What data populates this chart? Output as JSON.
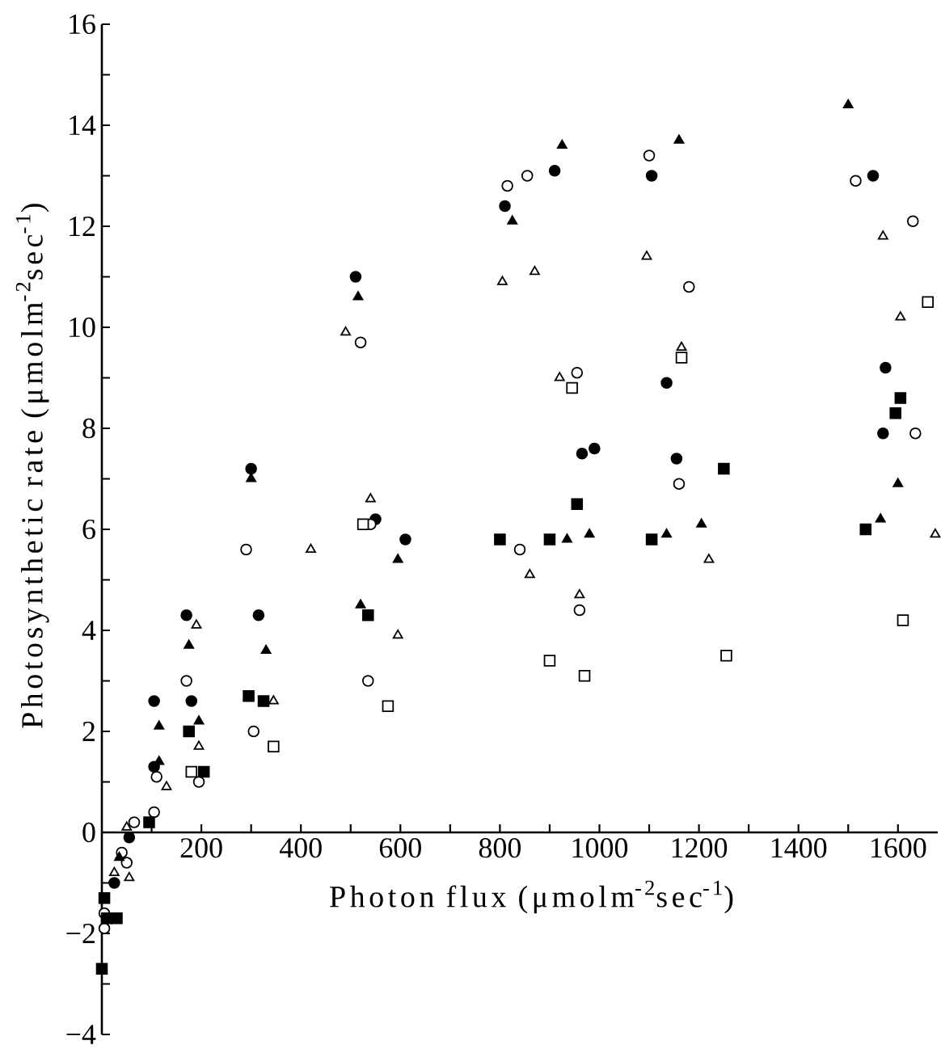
{
  "chart_data": {
    "type": "scatter",
    "xlabel": "Photon flux  (μmolm$^{-2}$sec$^{-1}$)",
    "ylabel": "Photosynthetic rate  (μmolm$^{-2}$sec$^{-1}$)",
    "xlim": [
      0,
      1680
    ],
    "ylim": [
      -4,
      16
    ],
    "xticks": [
      {
        "value": 100,
        "label": null
      },
      200,
      {
        "value": 300,
        "label": null
      },
      400,
      {
        "value": 500,
        "label": null
      },
      600,
      {
        "value": 700,
        "label": null
      },
      800,
      {
        "value": 900,
        "label": null
      },
      1000,
      {
        "value": 1100,
        "label": null
      },
      1200,
      {
        "value": 1300,
        "label": null
      },
      1400,
      {
        "value": 1500,
        "label": null
      },
      1600
    ],
    "yticks": [
      {
        "value": -4,
        "label": "−4"
      },
      {
        "value": -3,
        "label": null
      },
      {
        "value": -2,
        "label": "−2"
      },
      {
        "value": -1,
        "label": null
      },
      0,
      {
        "value": 1,
        "label": null
      },
      2,
      {
        "value": 3,
        "label": null
      },
      4,
      {
        "value": 5,
        "label": null
      },
      6,
      {
        "value": 7,
        "label": null
      },
      8,
      {
        "value": 9,
        "label": null
      },
      10,
      {
        "value": 11,
        "label": null
      },
      12,
      {
        "value": 13,
        "label": null
      },
      14,
      {
        "value": 15,
        "label": null
      },
      16
    ],
    "series": [
      {
        "marker": "circle",
        "color": "#000000",
        "x": [
          510,
          300,
          550,
          610,
          170,
          315,
          105,
          180,
          105,
          55,
          25,
          910,
          810,
          1105,
          1550,
          1135,
          965,
          990,
          1155,
          1575,
          1570
        ],
        "values": [
          11.0,
          7.2,
          6.2,
          5.8,
          4.3,
          4.3,
          2.6,
          2.6,
          1.3,
          -0.1,
          -1.0,
          13.1,
          12.4,
          13.0,
          13.0,
          8.9,
          7.5,
          7.6,
          7.4,
          9.2,
          7.9
        ]
      },
      {
        "marker": "circle",
        "color": "#ffffff",
        "x": [
          520,
          815,
          855,
          1100,
          1180,
          955,
          1160,
          1515,
          1630,
          1635,
          840,
          960,
          540,
          290,
          535,
          305,
          170,
          195,
          110,
          105,
          65,
          40,
          50,
          5,
          5
        ],
        "values": [
          9.7,
          12.8,
          13.0,
          13.4,
          10.8,
          9.1,
          6.9,
          12.9,
          12.1,
          7.9,
          5.6,
          4.4,
          6.1,
          5.6,
          3.0,
          2.0,
          3.0,
          1.0,
          1.1,
          0.4,
          0.2,
          -0.4,
          -0.6,
          -1.6,
          -1.9
        ]
      },
      {
        "marker": "triangle",
        "color": "#000000",
        "x": [
          515,
          300,
          925,
          825,
          1160,
          1500,
          1600,
          935,
          980,
          1135,
          1205,
          1565,
          595,
          520,
          330,
          175,
          115,
          195,
          115,
          35
        ],
        "values": [
          10.6,
          7.0,
          13.6,
          12.1,
          13.7,
          14.4,
          6.9,
          5.8,
          5.9,
          5.9,
          6.1,
          6.2,
          5.4,
          4.5,
          3.6,
          3.7,
          2.1,
          2.2,
          1.4,
          -0.5
        ]
      },
      {
        "marker": "triangle",
        "color": "#ffffff",
        "x": [
          490,
          805,
          870,
          1095,
          1165,
          920,
          1570,
          1605,
          860,
          960,
          1220,
          1675,
          540,
          420,
          595,
          345,
          190,
          195,
          130,
          50,
          25,
          55
        ],
        "values": [
          9.9,
          10.9,
          11.1,
          11.4,
          9.6,
          9.0,
          11.8,
          10.2,
          5.1,
          4.7,
          5.4,
          5.9,
          6.6,
          5.6,
          3.9,
          2.6,
          4.1,
          1.7,
          0.9,
          0.1,
          -0.8,
          -0.9
        ]
      },
      {
        "marker": "square",
        "color": "#000000",
        "x": [
          1250,
          955,
          1605,
          1595,
          800,
          900,
          1105,
          1535,
          535,
          295,
          325,
          175,
          205,
          95,
          5,
          10,
          30,
          0
        ],
        "values": [
          7.2,
          6.5,
          8.6,
          8.3,
          5.8,
          5.8,
          5.8,
          6.0,
          4.3,
          2.7,
          2.6,
          2.0,
          1.2,
          0.2,
          -1.3,
          -1.7,
          -1.7,
          -2.7
        ]
      },
      {
        "marker": "square",
        "color": "#ffffff",
        "x": [
          1165,
          945,
          1660,
          900,
          970,
          1255,
          1610,
          525,
          575,
          345,
          180
        ],
        "values": [
          9.4,
          8.8,
          10.5,
          3.4,
          3.1,
          3.5,
          4.2,
          6.1,
          2.5,
          1.7,
          1.2
        ]
      }
    ]
  }
}
